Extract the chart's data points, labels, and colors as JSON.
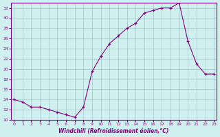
{
  "x": [
    0,
    1,
    2,
    3,
    4,
    5,
    6,
    7,
    8,
    9,
    10,
    11,
    12,
    13,
    14,
    15,
    16,
    17,
    18,
    19,
    20,
    21,
    22,
    23
  ],
  "y": [
    14.0,
    13.5,
    12.5,
    12.5,
    12.0,
    11.5,
    11.0,
    10.5,
    12.5,
    19.5,
    22.5,
    25.0,
    26.5,
    28.0,
    29.0,
    31.0,
    31.5,
    32.0,
    32.0,
    33.0,
    25.5,
    21.0,
    19.0,
    19.0
  ],
  "line_color": "#800080",
  "bg_color": "#d0f0f0",
  "grid_color": "#a0c8c8",
  "xlabel": "Windchill (Refroidissement éolien,°C)",
  "yticks": [
    10,
    12,
    14,
    16,
    18,
    20,
    22,
    24,
    26,
    28,
    30,
    32
  ],
  "xticks": [
    0,
    1,
    2,
    3,
    4,
    5,
    6,
    7,
    8,
    9,
    10,
    11,
    12,
    13,
    14,
    15,
    16,
    17,
    18,
    19,
    20,
    21,
    22,
    23
  ],
  "ylim": [
    10,
    33
  ],
  "xlim": [
    -0.3,
    23.3
  ]
}
